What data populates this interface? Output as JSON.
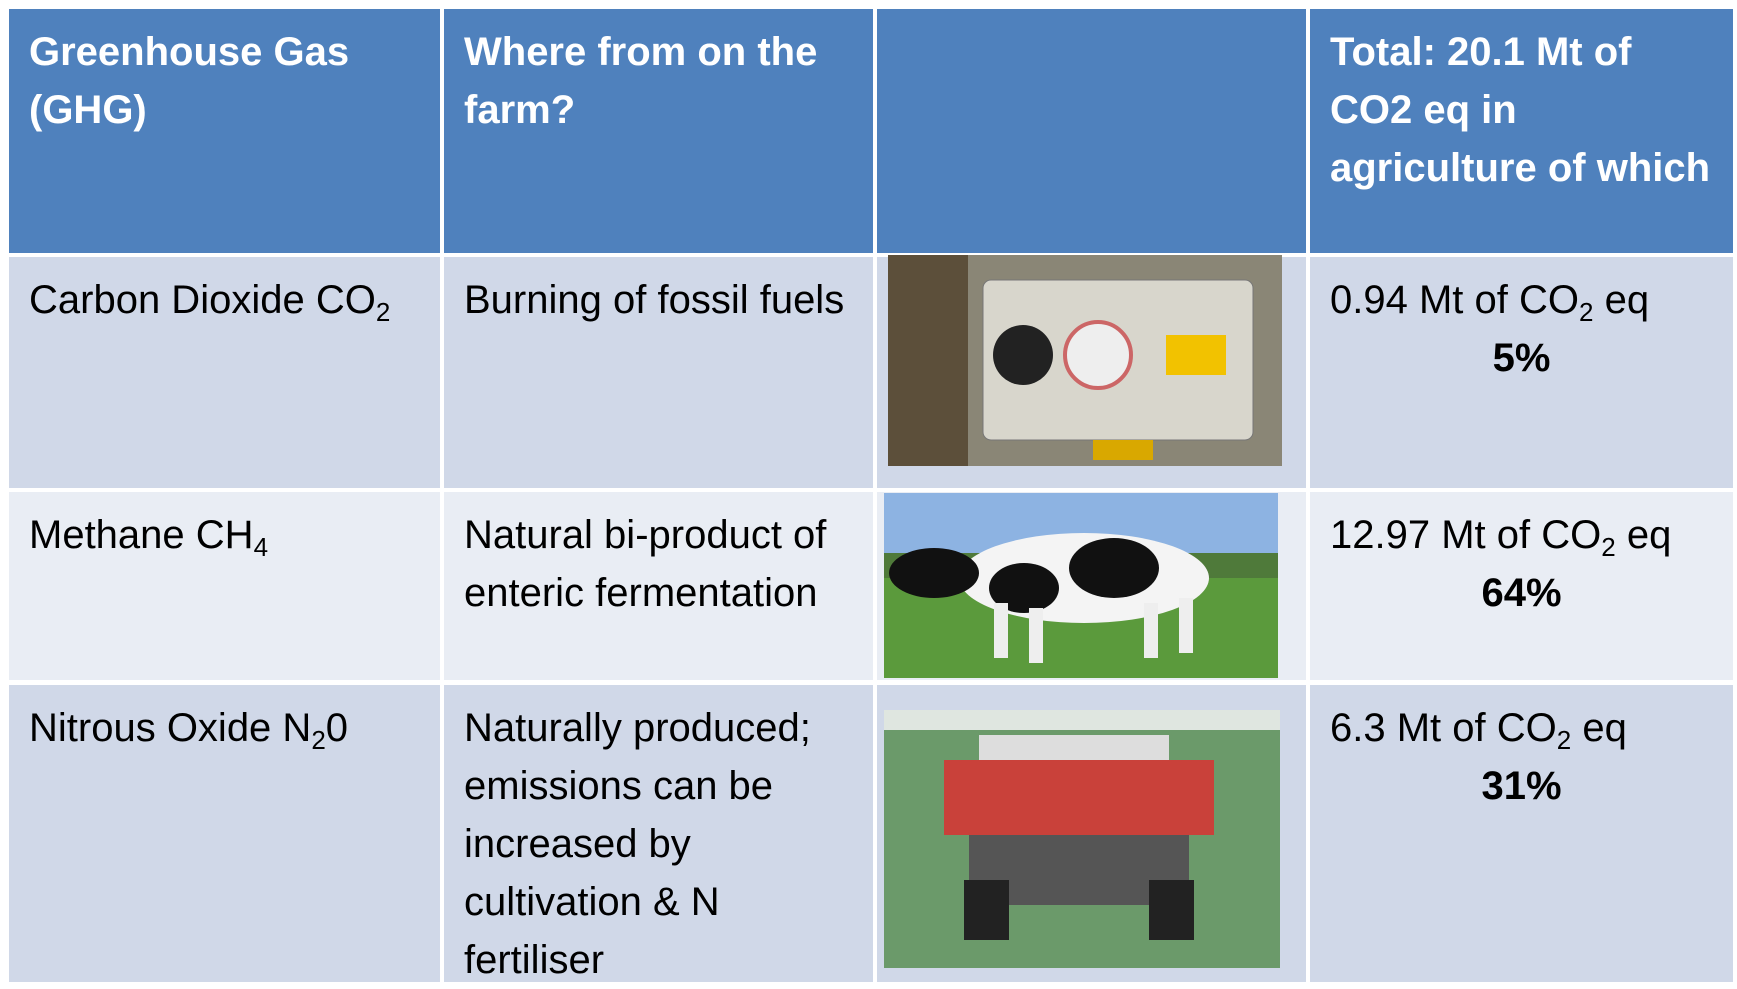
{
  "table": {
    "header": [
      "Greenhouse Gas (GHG)",
      "Where from on the farm?",
      "",
      "Total: 20.1 Mt of CO2 eq in agriculture  of which"
    ],
    "rows": [
      {
        "gas": [
          "Carbon Dioxide CO",
          {
            "sub": "2"
          }
        ],
        "source": "Burning of fossil fuels",
        "emission": [
          "0.94 Mt of CO",
          {
            "sub": "2"
          },
          " eq"
        ],
        "share": "5%"
      },
      {
        "gas": [
          "Methane CH",
          {
            "sub": "4"
          }
        ],
        "source": "Natural bi-product of enteric fermentation",
        "emission": [
          "12.97 Mt of CO",
          {
            "sub": "2"
          },
          " eq"
        ],
        "share": "64%"
      },
      {
        "gas": [
          "Nitrous Oxide N",
          {
            "sub": "2"
          },
          "0"
        ],
        "source": "Naturally produced; emissions can be increased by cultivation & N fertiliser",
        "emission": [
          "6.3 Mt of CO",
          {
            "sub": "2"
          },
          " eq"
        ],
        "share": "31%"
      }
    ]
  }
}
